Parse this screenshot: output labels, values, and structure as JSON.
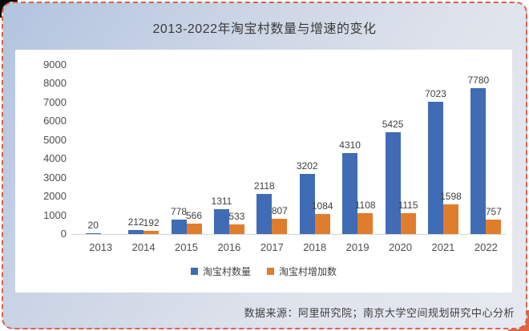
{
  "card": {
    "border_color": "#dc6143",
    "background_from": "#b2c4e0",
    "background_to": "#e6e9f0"
  },
  "footer": {
    "source_text": "数据来源：阿里研究院；南京大学空间规划研究中心分析"
  },
  "chart_data": {
    "type": "bar",
    "title": "2013-2022年淘宝村数量与增速的变化",
    "categories": [
      "2013",
      "2014",
      "2015",
      "2016",
      "2017",
      "2018",
      "2019",
      "2020",
      "2021",
      "2022"
    ],
    "series": [
      {
        "name": "淘宝村数量",
        "color": "#3f6cb4",
        "values": [
          20,
          212,
          778,
          1311,
          2118,
          3202,
          4310,
          5425,
          7023,
          7780
        ]
      },
      {
        "name": "淘宝村增加数",
        "color": "#e07d2d",
        "values": [
          null,
          192,
          566,
          533,
          807,
          1084,
          1108,
          1115,
          1598,
          757
        ]
      }
    ],
    "xlabel": "",
    "ylabel": "",
    "ylim": [
      0,
      9000
    ],
    "yticks": [
      0,
      1000,
      2000,
      3000,
      4000,
      5000,
      6000,
      7000,
      8000,
      9000
    ],
    "grid": false,
    "legend_position": "bottom",
    "data_labels": true
  }
}
